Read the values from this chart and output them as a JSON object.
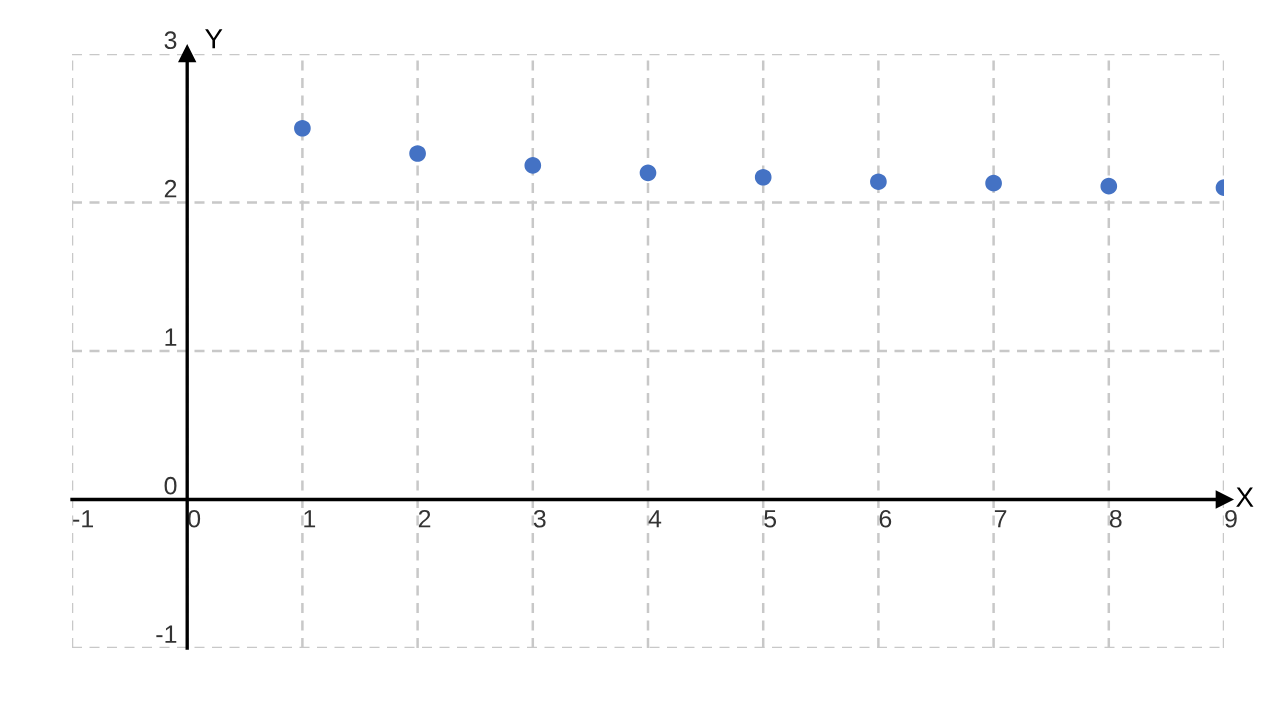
{
  "chart_data": {
    "type": "scatter",
    "xlabel": "X",
    "ylabel": "Y",
    "x": [
      1,
      2,
      3,
      4,
      5,
      6,
      7,
      8,
      9
    ],
    "values": [
      2.5,
      2.33,
      2.25,
      2.2,
      2.17,
      2.14,
      2.13,
      2.11,
      2.1
    ],
    "color": "#4472c4",
    "marker": "circle",
    "xlim": [
      -1,
      9
    ],
    "ylim": [
      -1,
      3
    ],
    "xticks": [
      -1,
      0,
      1,
      2,
      3,
      4,
      5,
      6,
      7,
      8,
      9
    ],
    "yticks": [
      -1,
      0,
      1,
      2,
      3
    ],
    "grid": true
  }
}
